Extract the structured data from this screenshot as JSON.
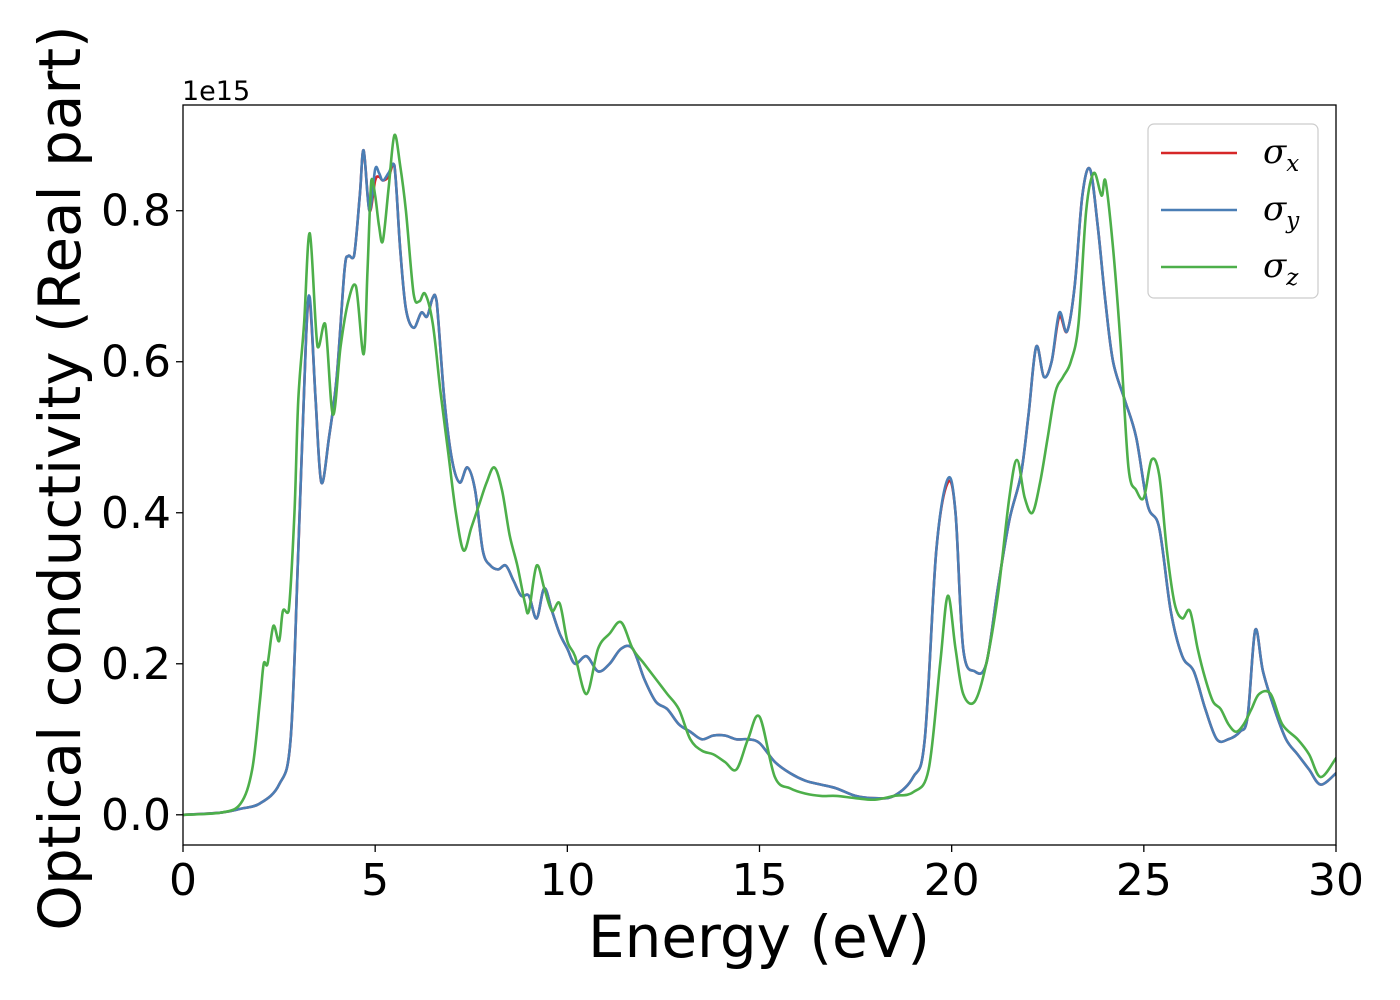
{
  "chart_data": {
    "type": "line",
    "xlabel": "Energy (eV)",
    "ylabel": "Optical conductivity (Real part)",
    "y_offset_label": "1e15",
    "xlim": [
      0,
      30
    ],
    "ylim": [
      -0.04,
      0.94
    ],
    "y_scale_multiplier": 1000000000000000.0,
    "xticks": [
      0,
      5,
      10,
      15,
      20,
      25,
      30
    ],
    "xtick_labels": [
      "0",
      "5",
      "10",
      "15",
      "20",
      "25",
      "30"
    ],
    "yticks": [
      0.0,
      0.2,
      0.4,
      0.6,
      0.8
    ],
    "ytick_labels": [
      "0.0",
      "0.2",
      "0.4",
      "0.6",
      "0.8"
    ],
    "grid": false,
    "legend_position": "top-right",
    "legend": [
      {
        "symbol": "σ",
        "subscript": "x",
        "color": "#d62728"
      },
      {
        "symbol": "σ",
        "subscript": "y",
        "color": "#4a7eb5"
      },
      {
        "symbol": "σ",
        "subscript": "z",
        "color": "#4daf4a"
      }
    ],
    "series": [
      {
        "color": "#d62728",
        "x": [
          0,
          1,
          1.5,
          2,
          2.5,
          2.8,
          3.0,
          3.2,
          3.3,
          3.45,
          3.6,
          3.8,
          4.0,
          4.2,
          4.3,
          4.45,
          4.6,
          4.7,
          4.85,
          5.0,
          5.1,
          5.2,
          5.35,
          5.5,
          5.65,
          5.8,
          6.0,
          6.2,
          6.35,
          6.5,
          6.6,
          6.8,
          7.0,
          7.2,
          7.4,
          7.6,
          7.8,
          8.0,
          8.2,
          8.4,
          8.6,
          8.8,
          9.0,
          9.2,
          9.4,
          9.6,
          9.8,
          10.0,
          10.2,
          10.5,
          10.8,
          11.1,
          11.4,
          11.7,
          12.0,
          12.3,
          12.6,
          12.9,
          13.2,
          13.5,
          13.8,
          14.1,
          14.4,
          14.7,
          15.0,
          15.4,
          15.8,
          16.2,
          16.6,
          17.0,
          17.5,
          18.0,
          18.5,
          19.0,
          19.3,
          19.6,
          19.9,
          20.1,
          20.3,
          20.6,
          20.9,
          21.2,
          21.5,
          21.8,
          22.0,
          22.2,
          22.4,
          22.6,
          22.8,
          23.0,
          23.2,
          23.4,
          23.6,
          23.8,
          24.0,
          24.2,
          24.5,
          24.8,
          25.1,
          25.4,
          25.7,
          26.0,
          26.3,
          26.6,
          26.9,
          27.2,
          27.5,
          27.7,
          27.9,
          28.1,
          28.4,
          28.7,
          29.0,
          29.3,
          29.6,
          30.0
        ],
        "y": [
          0.0,
          0.003,
          0.008,
          0.015,
          0.04,
          0.1,
          0.35,
          0.63,
          0.68,
          0.55,
          0.44,
          0.5,
          0.58,
          0.72,
          0.74,
          0.74,
          0.82,
          0.88,
          0.8,
          0.84,
          0.845,
          0.84,
          0.845,
          0.86,
          0.75,
          0.67,
          0.645,
          0.665,
          0.66,
          0.685,
          0.68,
          0.55,
          0.47,
          0.44,
          0.46,
          0.43,
          0.35,
          0.33,
          0.325,
          0.33,
          0.31,
          0.29,
          0.29,
          0.26,
          0.3,
          0.27,
          0.24,
          0.22,
          0.2,
          0.21,
          0.19,
          0.2,
          0.22,
          0.22,
          0.18,
          0.15,
          0.14,
          0.12,
          0.11,
          0.1,
          0.105,
          0.105,
          0.1,
          0.1,
          0.095,
          0.07,
          0.055,
          0.045,
          0.04,
          0.035,
          0.025,
          0.022,
          0.025,
          0.05,
          0.1,
          0.35,
          0.44,
          0.4,
          0.22,
          0.19,
          0.2,
          0.3,
          0.39,
          0.45,
          0.53,
          0.62,
          0.58,
          0.6,
          0.66,
          0.64,
          0.7,
          0.82,
          0.855,
          0.78,
          0.68,
          0.6,
          0.55,
          0.5,
          0.41,
          0.38,
          0.27,
          0.21,
          0.19,
          0.14,
          0.1,
          0.1,
          0.11,
          0.13,
          0.245,
          0.19,
          0.14,
          0.1,
          0.08,
          0.06,
          0.04,
          0.055
        ]
      },
      {
        "color": "#4a7eb5",
        "x": [
          0,
          1,
          1.5,
          2,
          2.5,
          2.8,
          3.0,
          3.2,
          3.3,
          3.45,
          3.6,
          3.8,
          4.0,
          4.2,
          4.3,
          4.45,
          4.6,
          4.7,
          4.85,
          5.0,
          5.1,
          5.2,
          5.35,
          5.5,
          5.65,
          5.8,
          6.0,
          6.2,
          6.35,
          6.5,
          6.6,
          6.8,
          7.0,
          7.2,
          7.4,
          7.6,
          7.8,
          8.0,
          8.2,
          8.4,
          8.6,
          8.8,
          9.0,
          9.2,
          9.4,
          9.6,
          9.8,
          10.0,
          10.2,
          10.5,
          10.8,
          11.1,
          11.4,
          11.7,
          12.0,
          12.3,
          12.6,
          12.9,
          13.2,
          13.5,
          13.8,
          14.1,
          14.4,
          14.7,
          15.0,
          15.4,
          15.8,
          16.2,
          16.6,
          17.0,
          17.5,
          18.0,
          18.5,
          19.0,
          19.3,
          19.6,
          19.9,
          20.1,
          20.3,
          20.6,
          20.9,
          21.2,
          21.5,
          21.8,
          22.0,
          22.2,
          22.4,
          22.6,
          22.8,
          23.0,
          23.2,
          23.4,
          23.6,
          23.8,
          24.0,
          24.2,
          24.5,
          24.8,
          25.1,
          25.4,
          25.7,
          26.0,
          26.3,
          26.6,
          26.9,
          27.2,
          27.5,
          27.7,
          27.9,
          28.1,
          28.4,
          28.7,
          29.0,
          29.3,
          29.6,
          30.0
        ],
        "y": [
          0.0,
          0.003,
          0.008,
          0.015,
          0.04,
          0.1,
          0.35,
          0.63,
          0.685,
          0.55,
          0.44,
          0.5,
          0.58,
          0.72,
          0.74,
          0.74,
          0.82,
          0.88,
          0.8,
          0.855,
          0.85,
          0.84,
          0.85,
          0.86,
          0.75,
          0.67,
          0.645,
          0.665,
          0.66,
          0.685,
          0.68,
          0.55,
          0.47,
          0.44,
          0.46,
          0.43,
          0.35,
          0.33,
          0.325,
          0.33,
          0.31,
          0.29,
          0.29,
          0.26,
          0.3,
          0.27,
          0.24,
          0.22,
          0.2,
          0.21,
          0.19,
          0.2,
          0.22,
          0.22,
          0.18,
          0.15,
          0.14,
          0.12,
          0.11,
          0.1,
          0.105,
          0.105,
          0.1,
          0.1,
          0.095,
          0.07,
          0.055,
          0.045,
          0.04,
          0.035,
          0.025,
          0.022,
          0.025,
          0.05,
          0.1,
          0.35,
          0.445,
          0.4,
          0.22,
          0.19,
          0.2,
          0.3,
          0.39,
          0.45,
          0.53,
          0.62,
          0.58,
          0.6,
          0.665,
          0.64,
          0.7,
          0.82,
          0.855,
          0.78,
          0.68,
          0.6,
          0.55,
          0.5,
          0.41,
          0.38,
          0.27,
          0.21,
          0.19,
          0.14,
          0.1,
          0.1,
          0.11,
          0.13,
          0.245,
          0.19,
          0.14,
          0.1,
          0.08,
          0.06,
          0.04,
          0.055
        ]
      },
      {
        "color": "#4daf4a",
        "x": [
          0,
          1,
          1.5,
          1.8,
          2.0,
          2.1,
          2.2,
          2.35,
          2.5,
          2.6,
          2.75,
          2.9,
          3.0,
          3.15,
          3.3,
          3.5,
          3.7,
          3.9,
          4.1,
          4.3,
          4.5,
          4.7,
          4.8,
          4.9,
          5.0,
          5.1,
          5.2,
          5.35,
          5.5,
          5.65,
          5.8,
          6.0,
          6.15,
          6.3,
          6.5,
          6.7,
          6.9,
          7.1,
          7.3,
          7.5,
          7.7,
          7.9,
          8.1,
          8.3,
          8.5,
          8.7,
          8.9,
          9.0,
          9.2,
          9.4,
          9.6,
          9.8,
          10.0,
          10.2,
          10.5,
          10.8,
          11.1,
          11.4,
          11.7,
          12.0,
          12.3,
          12.6,
          12.9,
          13.2,
          13.5,
          13.8,
          14.1,
          14.4,
          14.7,
          15.0,
          15.4,
          15.8,
          16.2,
          16.6,
          17.0,
          17.5,
          18.0,
          18.5,
          19.0,
          19.4,
          19.7,
          19.9,
          20.1,
          20.3,
          20.6,
          20.9,
          21.2,
          21.5,
          21.7,
          21.9,
          22.1,
          22.3,
          22.5,
          22.7,
          22.9,
          23.1,
          23.3,
          23.5,
          23.7,
          23.9,
          24.0,
          24.2,
          24.4,
          24.6,
          24.8,
          25.0,
          25.2,
          25.4,
          25.6,
          25.8,
          26.0,
          26.2,
          26.4,
          26.6,
          26.8,
          27.0,
          27.2,
          27.4,
          27.6,
          27.8,
          28.0,
          28.3,
          28.6,
          29.0,
          29.3,
          29.6,
          30.0
        ],
        "y": [
          0.0,
          0.003,
          0.015,
          0.06,
          0.15,
          0.2,
          0.2,
          0.25,
          0.23,
          0.27,
          0.27,
          0.4,
          0.55,
          0.65,
          0.77,
          0.62,
          0.65,
          0.53,
          0.62,
          0.68,
          0.7,
          0.61,
          0.72,
          0.84,
          0.82,
          0.78,
          0.76,
          0.83,
          0.9,
          0.86,
          0.8,
          0.69,
          0.68,
          0.69,
          0.65,
          0.56,
          0.48,
          0.4,
          0.35,
          0.38,
          0.41,
          0.44,
          0.46,
          0.43,
          0.37,
          0.33,
          0.28,
          0.27,
          0.33,
          0.3,
          0.27,
          0.28,
          0.23,
          0.21,
          0.16,
          0.22,
          0.24,
          0.255,
          0.22,
          0.2,
          0.18,
          0.16,
          0.14,
          0.1,
          0.085,
          0.08,
          0.07,
          0.06,
          0.1,
          0.13,
          0.05,
          0.035,
          0.028,
          0.025,
          0.025,
          0.022,
          0.02,
          0.025,
          0.03,
          0.06,
          0.2,
          0.29,
          0.22,
          0.16,
          0.15,
          0.2,
          0.29,
          0.42,
          0.47,
          0.42,
          0.4,
          0.44,
          0.5,
          0.56,
          0.58,
          0.6,
          0.65,
          0.8,
          0.85,
          0.82,
          0.84,
          0.75,
          0.62,
          0.46,
          0.43,
          0.42,
          0.47,
          0.45,
          0.35,
          0.28,
          0.26,
          0.27,
          0.22,
          0.18,
          0.15,
          0.14,
          0.12,
          0.11,
          0.12,
          0.14,
          0.16,
          0.16,
          0.12,
          0.1,
          0.08,
          0.05,
          0.075
        ]
      }
    ]
  }
}
